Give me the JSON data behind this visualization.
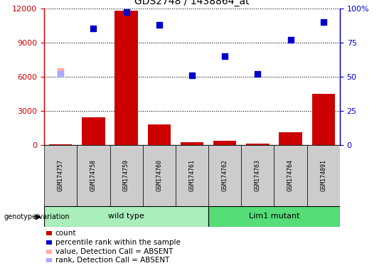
{
  "title": "GDS2748 / 1438864_at",
  "samples": [
    "GSM174757",
    "GSM174758",
    "GSM174759",
    "GSM174760",
    "GSM174761",
    "GSM174762",
    "GSM174763",
    "GSM174764",
    "GSM174891"
  ],
  "counts": [
    60,
    2400,
    11800,
    1800,
    200,
    350,
    80,
    1100,
    4500
  ],
  "percentile_ranks": [
    null,
    85,
    97,
    88,
    51,
    65,
    52,
    77,
    90
  ],
  "absent_value": [
    6500,
    null,
    null,
    null,
    null,
    null,
    null,
    null,
    null
  ],
  "absent_rank": [
    52,
    null,
    null,
    null,
    null,
    null,
    null,
    null,
    null
  ],
  "wild_type_indices": [
    0,
    1,
    2,
    3,
    4
  ],
  "lim1_mutant_indices": [
    5,
    6,
    7,
    8
  ],
  "ylim_left": [
    0,
    12000
  ],
  "ylim_right": [
    0,
    100
  ],
  "yticks_left": [
    0,
    3000,
    6000,
    9000,
    12000
  ],
  "yticks_right": [
    0,
    25,
    50,
    75,
    100
  ],
  "bar_color": "#cc0000",
  "dot_color": "#0000cc",
  "absent_value_color": "#ffaaaa",
  "absent_rank_color": "#aaaaff",
  "wt_bg_color": "#aaeebb",
  "mut_bg_color": "#55dd77",
  "sample_bg_color": "#cccccc",
  "legend_items": [
    {
      "label": "count",
      "color": "#cc0000"
    },
    {
      "label": "percentile rank within the sample",
      "color": "#0000cc"
    },
    {
      "label": "value, Detection Call = ABSENT",
      "color": "#ffaaaa"
    },
    {
      "label": "rank, Detection Call = ABSENT",
      "color": "#aaaaff"
    }
  ]
}
